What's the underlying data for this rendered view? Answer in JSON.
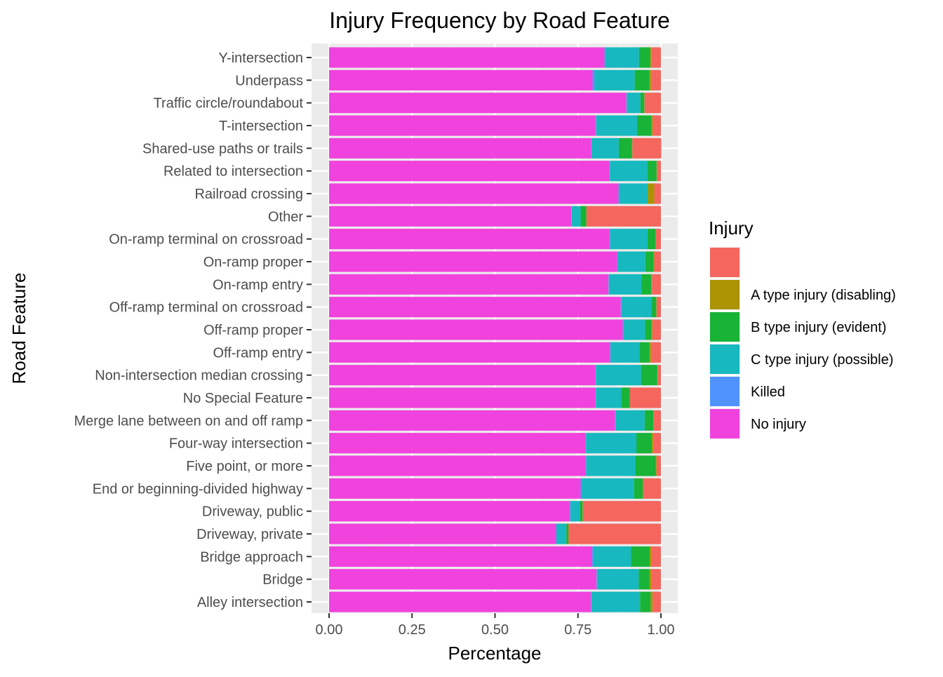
{
  "chart_data": {
    "type": "bar",
    "orientation": "horizontal",
    "stacked": true,
    "title": "Injury Frequency by Road Feature",
    "xlabel": "Percentage",
    "ylabel": "Road Feature",
    "xlim": [
      0,
      1
    ],
    "x_ticks": [
      "0.00",
      "0.25",
      "0.50",
      "0.75",
      "1.00"
    ],
    "grid": true,
    "legend_position": "right",
    "legend_title": "Injury",
    "categories": [
      "Alley intersection",
      "Bridge",
      "Bridge approach",
      "Driveway, private",
      "Driveway, public",
      "End or beginning-divided highway",
      "Five point, or more",
      "Four-way intersection",
      "Merge lane between on and off ramp",
      "No Special Feature",
      "Non-intersection median crossing",
      "Off-ramp entry",
      "Off-ramp proper",
      "Off-ramp terminal on crossroad",
      "On-ramp entry",
      "On-ramp proper",
      "On-ramp terminal on crossroad",
      "Other",
      "Railroad crossing",
      "Related to intersection",
      "Shared-use paths or trails",
      "T-intersection",
      "Traffic circle/roundabout",
      "Underpass",
      "Y-intersection"
    ],
    "series": [
      {
        "name": "No injury",
        "color": "#F042DD",
        "values": [
          0.789,
          0.806,
          0.793,
          0.684,
          0.726,
          0.758,
          0.774,
          0.773,
          0.862,
          0.803,
          0.803,
          0.847,
          0.885,
          0.879,
          0.842,
          0.868,
          0.846,
          0.73,
          0.872,
          0.845,
          0.79,
          0.804,
          0.896,
          0.794,
          0.83
        ]
      },
      {
        "name": "Killed",
        "color": "#5093FF",
        "values": [
          0.001,
          0.001,
          0.003,
          0.001,
          0.001,
          0.001,
          0.001,
          0.001,
          0.001,
          0.001,
          0.001,
          0.001,
          0.001,
          0.001,
          0.001,
          0.001,
          0.001,
          0.001,
          0.001,
          0.001,
          0.001,
          0.001,
          0.001,
          0.006,
          0.001
        ]
      },
      {
        "name": "C type injury (possible)",
        "color": "#17B8BF",
        "values": [
          0.147,
          0.126,
          0.114,
          0.03,
          0.029,
          0.16,
          0.148,
          0.152,
          0.088,
          0.076,
          0.136,
          0.087,
          0.066,
          0.091,
          0.098,
          0.084,
          0.113,
          0.027,
          0.087,
          0.113,
          0.082,
          0.123,
          0.041,
          0.121,
          0.103
        ]
      },
      {
        "name": "B type injury (evident)",
        "color": "#18B337",
        "values": [
          0.032,
          0.032,
          0.056,
          0.006,
          0.008,
          0.026,
          0.062,
          0.047,
          0.026,
          0.026,
          0.049,
          0.03,
          0.02,
          0.015,
          0.03,
          0.025,
          0.024,
          0.017,
          0.001,
          0.028,
          0.04,
          0.044,
          0.012,
          0.044,
          0.034
        ]
      },
      {
        "name": "A type injury (disabling)",
        "color": "#AB9302",
        "values": [
          0.006,
          0.006,
          0.006,
          0.001,
          0.001,
          0.001,
          0.002,
          0.004,
          0.001,
          0.001,
          0.002,
          0.005,
          0.002,
          0.001,
          0.002,
          0.002,
          0.001,
          0.001,
          0.019,
          0.001,
          0.001,
          0.003,
          0.001,
          0.005,
          0.003
        ]
      },
      {
        "name": "",
        "color": "#F4665E",
        "values": [
          0.025,
          0.029,
          0.028,
          0.278,
          0.235,
          0.054,
          0.013,
          0.023,
          0.022,
          0.093,
          0.009,
          0.03,
          0.026,
          0.013,
          0.027,
          0.02,
          0.015,
          0.224,
          0.02,
          0.012,
          0.087,
          0.025,
          0.049,
          0.03,
          0.029
        ]
      }
    ]
  }
}
